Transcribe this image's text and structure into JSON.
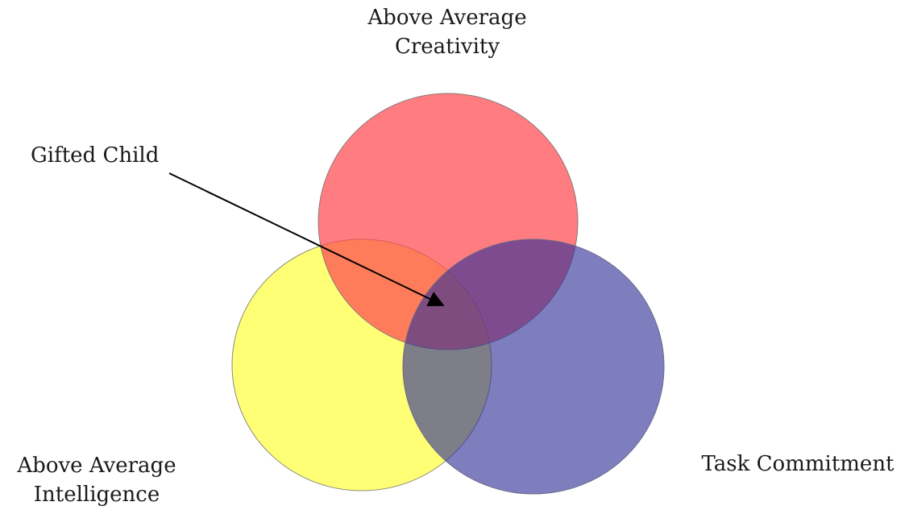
{
  "diagram": {
    "labels": {
      "creativity": [
        "Above Average",
        "Creativity"
      ],
      "intelligence": [
        "Above Average",
        "Intelligence"
      ],
      "task_commitment": [
        "Task Commitment"
      ],
      "gifted_child": "Gifted Child"
    },
    "colors": {
      "creativity": "#ff5a5f",
      "intelligence": "#ffff40",
      "task_commitment": "#4b4ba6",
      "arrow": "#000000"
    }
  }
}
